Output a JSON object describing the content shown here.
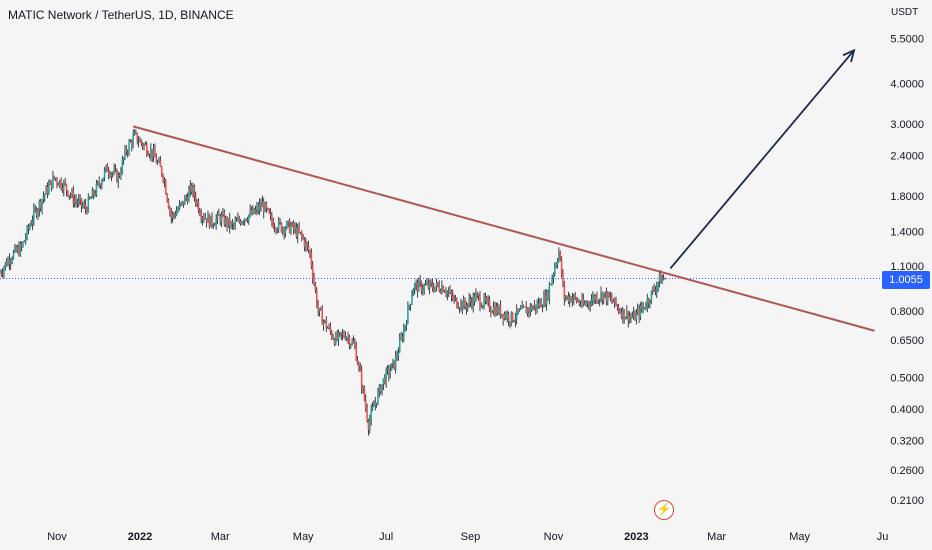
{
  "header": {
    "title": "MATIC Network / TetherUS, 1D, BINANCE"
  },
  "axis": {
    "unit_label": "USDT"
  },
  "current_price": {
    "label": "1.0055",
    "value": 1.0055
  },
  "colors": {
    "up": "#26a69a",
    "down": "#ef5350",
    "wick": "#131722",
    "trendline": "#b05555",
    "arrow": "#1c2a4f",
    "price_line": "#2962ff"
  },
  "icons": {
    "bolt": "lightning-bolt-icon"
  },
  "chart_data": {
    "type": "candlestick",
    "scale": "log",
    "ylim": [
      0.18,
      6.5
    ],
    "y_ticks": [
      {
        "label": "5.5000",
        "value": 5.5
      },
      {
        "label": "4.0000",
        "value": 4.0
      },
      {
        "label": "3.0000",
        "value": 3.0
      },
      {
        "label": "2.4000",
        "value": 2.4
      },
      {
        "label": "1.8000",
        "value": 1.8
      },
      {
        "label": "1.4000",
        "value": 1.4
      },
      {
        "label": "1.1000",
        "value": 1.1
      },
      {
        "label": "0.8000",
        "value": 0.8
      },
      {
        "label": "0.6500",
        "value": 0.65
      },
      {
        "label": "0.5000",
        "value": 0.5
      },
      {
        "label": "0.4000",
        "value": 0.4
      },
      {
        "label": "0.3200",
        "value": 0.32
      },
      {
        "label": "0.2600",
        "value": 0.26
      },
      {
        "label": "0.2100",
        "value": 0.21
      }
    ],
    "x_ticks": [
      {
        "label": "Nov",
        "date": "2021-11-01",
        "bold": false
      },
      {
        "label": "2022",
        "date": "2022-01-01",
        "bold": true
      },
      {
        "label": "Mar",
        "date": "2022-03-01",
        "bold": false
      },
      {
        "label": "May",
        "date": "2022-05-01",
        "bold": false
      },
      {
        "label": "Jul",
        "date": "2022-07-01",
        "bold": false
      },
      {
        "label": "Sep",
        "date": "2022-09-01",
        "bold": false
      },
      {
        "label": "Nov",
        "date": "2022-11-01",
        "bold": false
      },
      {
        "label": "2023",
        "date": "2023-01-01",
        "bold": true
      },
      {
        "label": "Mar",
        "date": "2023-03-01",
        "bold": false
      },
      {
        "label": "May",
        "date": "2023-05-01",
        "bold": false
      },
      {
        "label": "Ju",
        "date": "2023-07-01",
        "bold": false
      }
    ],
    "close_path": [
      [
        "2021-09-20",
        1.05
      ],
      [
        "2021-09-28",
        1.18
      ],
      [
        "2021-10-06",
        1.25
      ],
      [
        "2021-10-14",
        1.55
      ],
      [
        "2021-10-22",
        1.8
      ],
      [
        "2021-10-30",
        2.05
      ],
      [
        "2021-11-06",
        1.95
      ],
      [
        "2021-11-14",
        1.75
      ],
      [
        "2021-11-22",
        1.65
      ],
      [
        "2021-11-30",
        1.9
      ],
      [
        "2021-12-08",
        2.2
      ],
      [
        "2021-12-16",
        2.05
      ],
      [
        "2021-12-22",
        2.5
      ],
      [
        "2021-12-28",
        2.75
      ],
      [
        "2022-01-03",
        2.6
      ],
      [
        "2022-01-10",
        2.45
      ],
      [
        "2022-01-18",
        2.1
      ],
      [
        "2022-01-24",
        1.55
      ],
      [
        "2022-02-01",
        1.7
      ],
      [
        "2022-02-08",
        1.9
      ],
      [
        "2022-02-15",
        1.6
      ],
      [
        "2022-02-22",
        1.5
      ],
      [
        "2022-03-01",
        1.55
      ],
      [
        "2022-03-10",
        1.45
      ],
      [
        "2022-03-18",
        1.55
      ],
      [
        "2022-03-26",
        1.6
      ],
      [
        "2022-04-01",
        1.7
      ],
      [
        "2022-04-08",
        1.5
      ],
      [
        "2022-04-15",
        1.45
      ],
      [
        "2022-04-22",
        1.45
      ],
      [
        "2022-04-30",
        1.35
      ],
      [
        "2022-05-06",
        1.2
      ],
      [
        "2022-05-12",
        0.8
      ],
      [
        "2022-05-18",
        0.72
      ],
      [
        "2022-05-25",
        0.65
      ],
      [
        "2022-06-01",
        0.68
      ],
      [
        "2022-06-08",
        0.62
      ],
      [
        "2022-06-13",
        0.48
      ],
      [
        "2022-06-18",
        0.36
      ],
      [
        "2022-06-23",
        0.42
      ],
      [
        "2022-06-30",
        0.5
      ],
      [
        "2022-07-07",
        0.55
      ],
      [
        "2022-07-14",
        0.7
      ],
      [
        "2022-07-21",
        0.95
      ],
      [
        "2022-07-28",
        0.95
      ],
      [
        "2022-08-05",
        0.95
      ],
      [
        "2022-08-12",
        0.95
      ],
      [
        "2022-08-20",
        0.86
      ],
      [
        "2022-08-28",
        0.83
      ],
      [
        "2022-09-05",
        0.88
      ],
      [
        "2022-09-14",
        0.83
      ],
      [
        "2022-09-22",
        0.8
      ],
      [
        "2022-10-01",
        0.76
      ],
      [
        "2022-10-10",
        0.8
      ],
      [
        "2022-10-20",
        0.83
      ],
      [
        "2022-10-27",
        0.88
      ],
      [
        "2022-11-02",
        1.1
      ],
      [
        "2022-11-05",
        1.22
      ],
      [
        "2022-11-09",
        0.88
      ],
      [
        "2022-11-15",
        0.88
      ],
      [
        "2022-11-23",
        0.83
      ],
      [
        "2022-12-01",
        0.88
      ],
      [
        "2022-12-08",
        0.9
      ],
      [
        "2022-12-15",
        0.85
      ],
      [
        "2022-12-22",
        0.79
      ],
      [
        "2022-12-30",
        0.76
      ],
      [
        "2023-01-06",
        0.82
      ],
      [
        "2023-01-12",
        0.9
      ],
      [
        "2023-01-18",
        1.0
      ],
      [
        "2023-01-22",
        1.0055
      ]
    ],
    "trendline": {
      "start": [
        "2021-12-27",
        2.95
      ],
      "end": [
        "2023-06-25",
        0.695
      ]
    },
    "arrow": {
      "start": [
        "2023-01-26",
        1.08
      ],
      "end": [
        "2023-06-10",
        5.05
      ]
    },
    "price_line": 1.0055
  }
}
